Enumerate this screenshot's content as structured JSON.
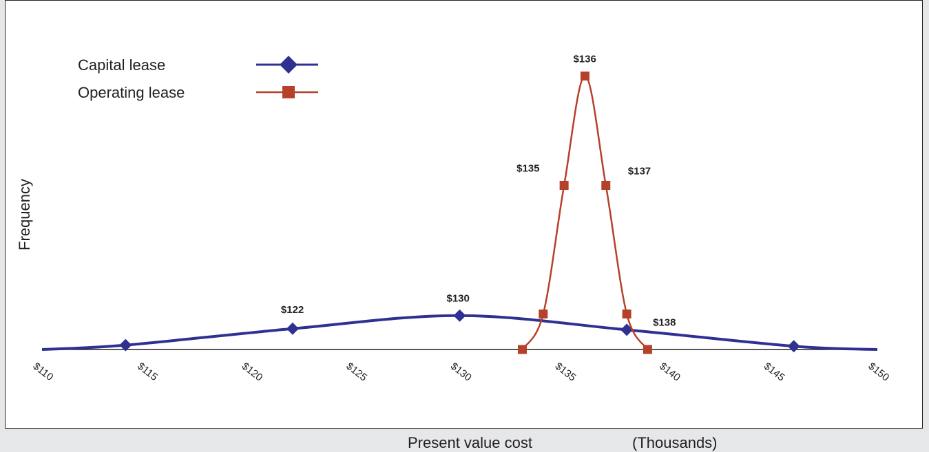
{
  "chart_data": {
    "type": "line",
    "xlabel": "Present value cost",
    "xlabel_unit": "(Thousands)",
    "ylabel": "Frequency",
    "xlim": [
      110,
      150
    ],
    "x_ticks": [
      110,
      115,
      120,
      125,
      130,
      135,
      140,
      145,
      150
    ],
    "x_tick_labels": [
      "$110",
      "$115",
      "$120",
      "$125",
      "$130",
      "$135",
      "$140",
      "$145",
      "$150"
    ],
    "grid": false,
    "legend_position": "top-left",
    "series": [
      {
        "name": "Capital lease",
        "color": "#2e3192",
        "marker": "diamond",
        "points": [
          [
            114,
            0.08
          ],
          [
            122,
            0.38
          ],
          [
            130,
            0.62
          ],
          [
            138,
            0.36
          ],
          [
            146,
            0.06
          ]
        ],
        "labels": [
          null,
          "$122",
          "$130",
          "$138",
          null
        ]
      },
      {
        "name": "Operating lease",
        "color": "#b5412b",
        "marker": "square",
        "points": [
          [
            133,
            0.0
          ],
          [
            134,
            0.65
          ],
          [
            135,
            3.0
          ],
          [
            136,
            5.0
          ],
          [
            137,
            3.0
          ],
          [
            138,
            0.65
          ],
          [
            139,
            0.0
          ]
        ],
        "labels": [
          null,
          null,
          "$135",
          "$136",
          "$137",
          null,
          null
        ]
      }
    ]
  }
}
